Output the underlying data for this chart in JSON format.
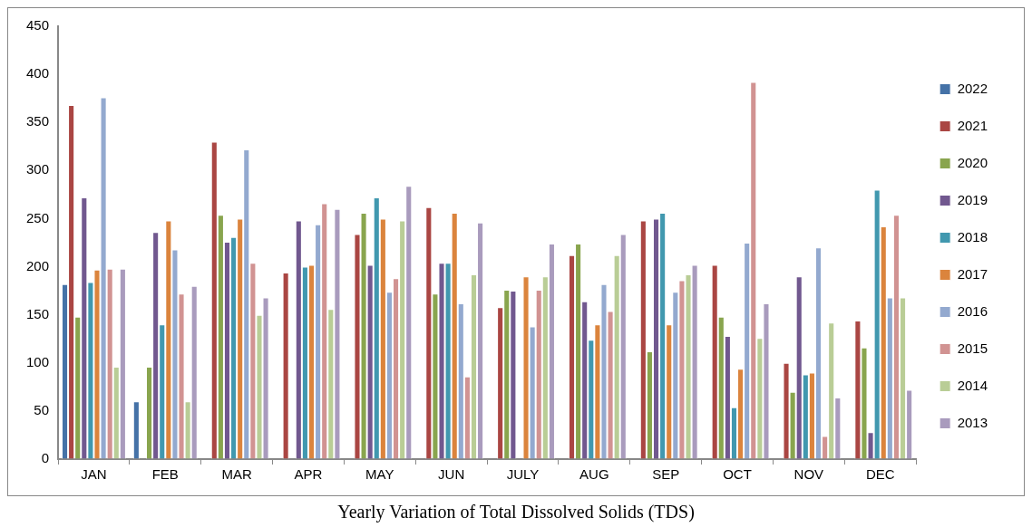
{
  "chart_data": {
    "type": "bar",
    "title": "Yearly Variation of Total Dissolved Solids (TDS)",
    "categories": [
      "JAN",
      "FEB",
      "MAR",
      "APR",
      "MAY",
      "JUN",
      "JULY",
      "AUG",
      "SEP",
      "OCT",
      "NOV",
      "DEC"
    ],
    "series": [
      {
        "name": "2022",
        "color": "#4572a7",
        "values": [
          182,
          60,
          null,
          null,
          null,
          null,
          null,
          null,
          null,
          null,
          null,
          null
        ]
      },
      {
        "name": "2021",
        "color": "#aa4643",
        "values": [
          368,
          null,
          330,
          194,
          234,
          262,
          158,
          212,
          248,
          202,
          100,
          144
        ]
      },
      {
        "name": "2020",
        "color": "#89a54e",
        "values": [
          148,
          96,
          254,
          null,
          256,
          172,
          176,
          224,
          112,
          148,
          70,
          116
        ]
      },
      {
        "name": "2019",
        "color": "#71588f",
        "values": [
          272,
          236,
          226,
          248,
          202,
          204,
          175,
          164,
          250,
          128,
          190,
          28
        ]
      },
      {
        "name": "2018",
        "color": "#4198af",
        "values": [
          184,
          140,
          231,
          200,
          272,
          204,
          null,
          124,
          256,
          54,
          88,
          280
        ]
      },
      {
        "name": "2017",
        "color": "#db843d",
        "values": [
          197,
          248,
          250,
          202,
          250,
          256,
          190,
          140,
          140,
          94,
          90,
          242
        ]
      },
      {
        "name": "2016",
        "color": "#93a9cf",
        "values": [
          376,
          218,
          322,
          244,
          174,
          162,
          138,
          182,
          174,
          225,
          220,
          168
        ]
      },
      {
        "name": "2015",
        "color": "#d19392",
        "values": [
          198,
          172,
          204,
          266,
          188,
          86,
          176,
          154,
          186,
          392,
          24,
          254
        ]
      },
      {
        "name": "2014",
        "color": "#b9cd96",
        "values": [
          96,
          60,
          150,
          156,
          248,
          192,
          190,
          212,
          192,
          126,
          142,
          168
        ]
      },
      {
        "name": "2013",
        "color": "#a99bbd",
        "values": [
          198,
          180,
          168,
          260,
          284,
          246,
          224,
          234,
          202,
          162,
          64,
          72
        ]
      }
    ],
    "ylim": [
      0,
      450
    ],
    "yticks": [
      0,
      50,
      100,
      150,
      200,
      250,
      300,
      350,
      400,
      450
    ],
    "grid": false,
    "legend": "right"
  }
}
